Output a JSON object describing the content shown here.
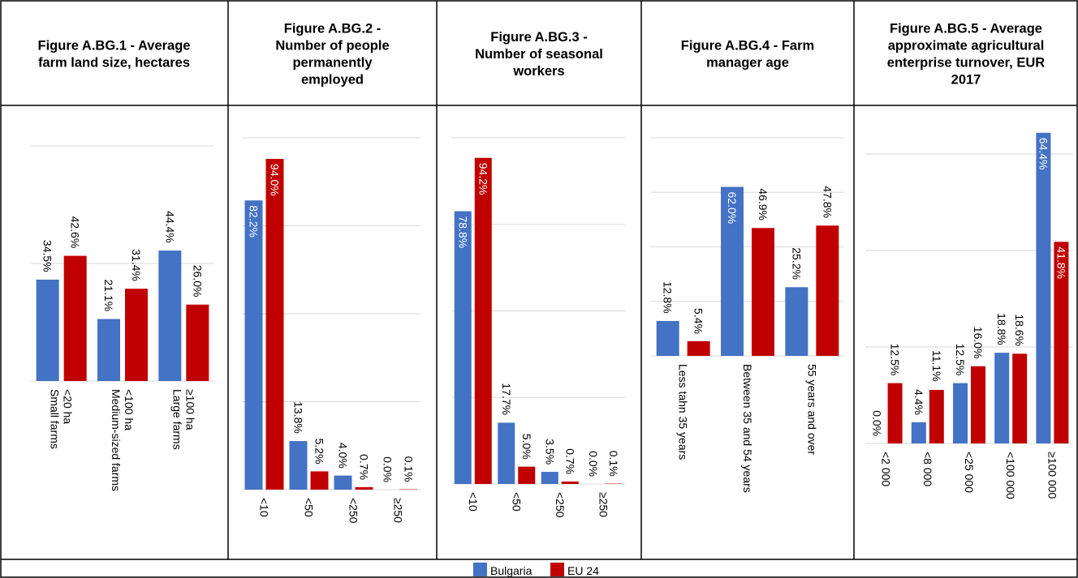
{
  "colors": {
    "bulgaria": "#4472C4",
    "eu24": "#C00000",
    "grid": "#d9d9d9",
    "border": "#000000"
  },
  "legend": [
    {
      "name": "Bulgaria",
      "color": "#4472C4"
    },
    {
      "name": "EU 24",
      "color": "#C00000"
    }
  ],
  "chart_data": [
    {
      "type": "bar",
      "title": "Figure A.BG.1 - Average farm land size, hectares",
      "categories": [
        "Small farms <20 ha",
        "Medium-sized farms <100 ha",
        "Large farms ≥100 ha"
      ],
      "series": [
        {
          "name": "Bulgaria",
          "values": [
            34.5,
            21.1,
            44.4
          ],
          "labels": [
            "34.5%",
            "21.1%",
            "44.4%"
          ]
        },
        {
          "name": "EU 24",
          "values": [
            42.6,
            31.4,
            26.0
          ],
          "labels": [
            "42.6%",
            "31.4%",
            "26.0%"
          ]
        }
      ],
      "ylim": [
        0,
        80
      ],
      "grid": true
    },
    {
      "type": "bar",
      "title": "Figure A.BG.2 - Number of people permanently employed",
      "categories": [
        "<10",
        "<50",
        "<250",
        "≥250"
      ],
      "series": [
        {
          "name": "Bulgaria",
          "values": [
            82.2,
            13.8,
            4.0,
            0.0
          ],
          "labels": [
            "82.2%",
            "13.8%",
            "4.0%",
            "0.0%"
          ]
        },
        {
          "name": "EU 24",
          "values": [
            94.0,
            5.2,
            0.7,
            0.1
          ],
          "labels": [
            "94.0%",
            "5.2%",
            "0.7%",
            "0.1%"
          ]
        }
      ],
      "ylim": [
        0,
        100
      ],
      "grid": true
    },
    {
      "type": "bar",
      "title": "Figure A.BG.3 - Number of seasonal workers",
      "categories": [
        "<10",
        "<50",
        "<250",
        "≥250"
      ],
      "series": [
        {
          "name": "Bulgaria",
          "values": [
            78.8,
            17.7,
            3.5,
            0.0
          ],
          "labels": [
            "78.8%",
            "17.7%",
            "3.5%",
            "0.0%"
          ]
        },
        {
          "name": "EU 24",
          "values": [
            94.2,
            5.0,
            0.7,
            0.1
          ],
          "labels": [
            "94.2%",
            "5.0%",
            "0.7%",
            "0.1%"
          ]
        }
      ],
      "ylim": [
        0,
        100
      ],
      "grid": true
    },
    {
      "type": "bar",
      "title": "Figure A.BG.4 - Farm manager age",
      "categories": [
        "Less tahn 35 years",
        "Between 35 and 54 years",
        "55 years and over"
      ],
      "series": [
        {
          "name": "Bulgaria",
          "values": [
            12.8,
            62.0,
            25.2
          ],
          "labels": [
            "12.8%",
            "62.0%",
            "25.2%"
          ]
        },
        {
          "name": "EU 24",
          "values": [
            5.4,
            46.9,
            47.8
          ],
          "labels": [
            "5.4%",
            "46.9%",
            "47.8%"
          ]
        }
      ],
      "ylim": [
        0,
        80
      ],
      "grid": true
    },
    {
      "type": "bar",
      "title": "Figure A.BG.5 - Average approximate agricultural enterprise turnover, EUR 2017",
      "categories": [
        "<2 000",
        "<8 000",
        "<25 000",
        "<100 000",
        "≥100 000"
      ],
      "series": [
        {
          "name": "Bulgaria",
          "values": [
            0.0,
            4.4,
            12.5,
            18.8,
            64.4
          ],
          "labels": [
            "0.0%",
            "4.4%",
            "12.5%",
            "18.8%",
            "64.4%"
          ]
        },
        {
          "name": "EU 24",
          "values": [
            12.5,
            11.1,
            16.0,
            18.6,
            41.8
          ],
          "labels": [
            "12.5%",
            "11.1%",
            "16.0%",
            "18.6%",
            "41.8%"
          ]
        }
      ],
      "ylim": [
        0,
        80
      ],
      "grid": true
    }
  ]
}
